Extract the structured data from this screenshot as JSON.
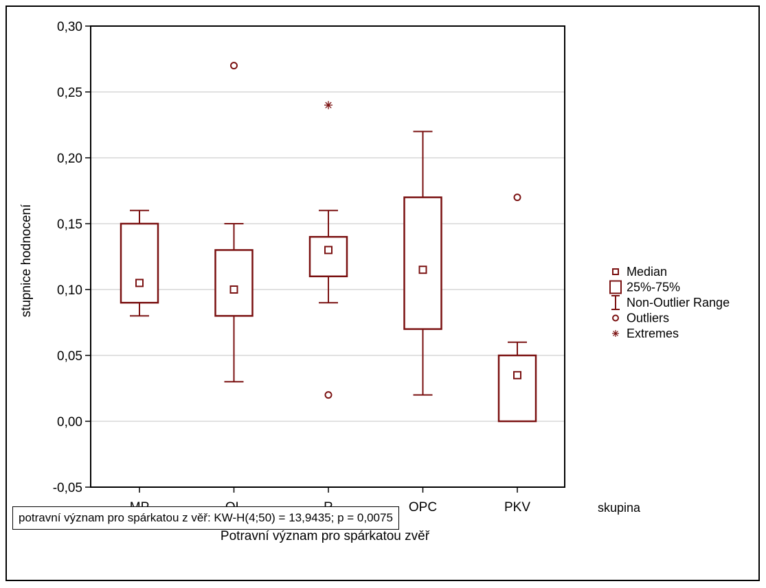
{
  "chart_data": {
    "type": "box",
    "xlabel": "Potravní význam pro spárkatou zvěř",
    "ylabel": "stupnice hodnocení",
    "x_var_label": "skupina",
    "categories": [
      "MP",
      "OL",
      "R",
      "OPC",
      "PKV"
    ],
    "ylim": [
      -0.05,
      0.3
    ],
    "yticks": [
      "-0,05",
      "0,00",
      "0,05",
      "0,10",
      "0,15",
      "0,20",
      "0,25",
      "0,30"
    ],
    "grid": true,
    "legend_position": "right",
    "boxes": [
      {
        "name": "MP",
        "median": 0.105,
        "q1": 0.09,
        "q3": 0.15,
        "whisker_low": 0.08,
        "whisker_high": 0.16,
        "outliers": [],
        "extremes": []
      },
      {
        "name": "OL",
        "median": 0.1,
        "q1": 0.08,
        "q3": 0.13,
        "whisker_low": 0.03,
        "whisker_high": 0.15,
        "outliers": [
          0.27
        ],
        "extremes": []
      },
      {
        "name": "R",
        "median": 0.13,
        "q1": 0.11,
        "q3": 0.14,
        "whisker_low": 0.09,
        "whisker_high": 0.16,
        "outliers": [
          0.02
        ],
        "extremes": [
          0.24
        ]
      },
      {
        "name": "OPC",
        "median": 0.115,
        "q1": 0.07,
        "q3": 0.17,
        "whisker_low": 0.02,
        "whisker_high": 0.22,
        "outliers": [],
        "extremes": []
      },
      {
        "name": "PKV",
        "median": 0.035,
        "q1": 0.0,
        "q3": 0.05,
        "whisker_low": 0.0,
        "whisker_high": 0.06,
        "outliers": [
          0.17
        ],
        "extremes": []
      }
    ],
    "legend": [
      "Median",
      "25%-75%",
      "Non-Outlier Range",
      "Outliers",
      "Extremes"
    ],
    "annotation": "potravní význam pro spárkatou z věř:  KW-H(4;50) = 13,9435; p = 0,0075",
    "colors": {
      "series": "#7a1010",
      "grid": "#cfcfcf",
      "axis": "#000000"
    }
  }
}
